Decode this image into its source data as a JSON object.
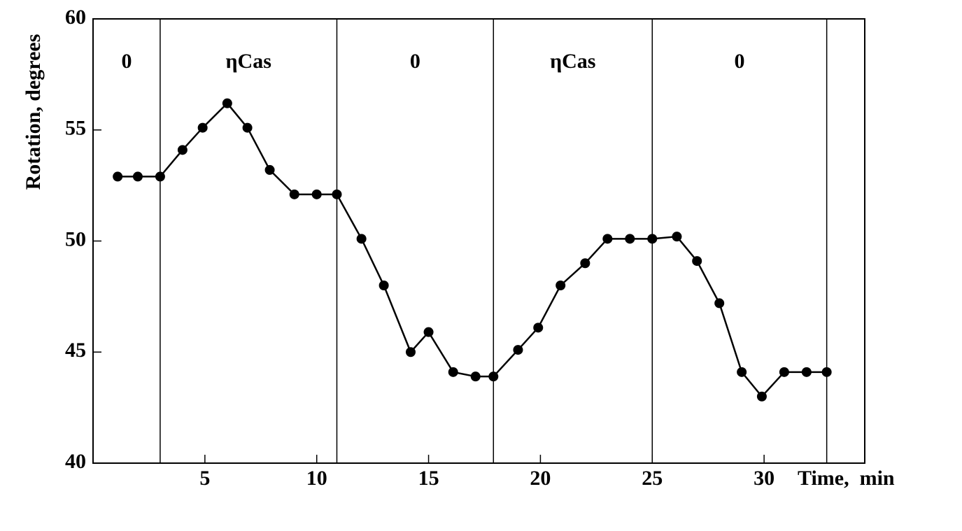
{
  "chart_data": {
    "type": "line",
    "y_label": "Rotation, degrees",
    "x_label": "Time,  min",
    "xlim": [
      0,
      34.5
    ],
    "ylim": [
      40,
      60
    ],
    "xticks": [
      5,
      10,
      15,
      20,
      25,
      30
    ],
    "yticks": [
      40,
      45,
      50,
      55,
      60
    ],
    "phase_boundaries": [
      3.0,
      10.9,
      17.9,
      25.0,
      32.8
    ],
    "phase_labels": [
      "0",
      "ηCas",
      "0",
      "ηCas",
      "0"
    ],
    "series": [
      {
        "color": "#000000",
        "x": [
          1.1,
          2.0,
          3.0,
          4.0,
          4.9,
          6.0,
          6.9,
          7.9,
          9.0,
          10.0,
          10.9,
          12.0,
          13.0,
          14.2,
          15.0,
          16.1,
          17.1,
          17.9,
          19.0,
          19.9,
          20.9,
          22.0,
          23.0,
          24.0,
          25.0,
          26.1,
          27.0,
          28.0,
          29.0,
          29.9,
          30.9,
          31.9,
          32.8
        ],
        "values": [
          52.9,
          52.9,
          52.9,
          54.1,
          55.1,
          56.2,
          55.1,
          53.2,
          52.1,
          52.1,
          52.1,
          50.1,
          48.0,
          45.0,
          45.9,
          44.1,
          43.9,
          43.9,
          45.1,
          46.1,
          48.0,
          49.0,
          50.1,
          50.1,
          50.1,
          50.2,
          49.1,
          47.2,
          44.1,
          43.0,
          44.1,
          44.1,
          44.1
        ]
      }
    ]
  }
}
